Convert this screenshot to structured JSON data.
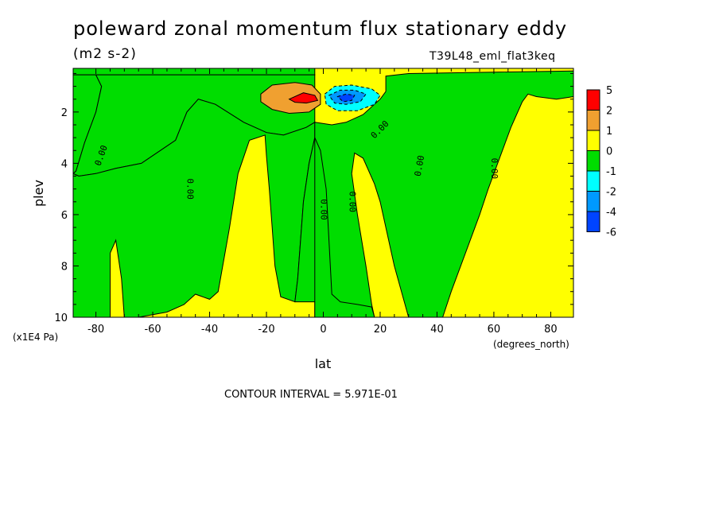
{
  "chart_data": {
    "type": "heatmap",
    "title": "poleward zonal momentum flux stationary eddy",
    "units": "(m2 s-2)",
    "run_id": "T39L48_eml_flat3keq",
    "xlabel": "lat",
    "x_units": "(degrees_north)",
    "ylabel": "plev",
    "y_units": "(x1E4 Pa)",
    "xlim": [
      -88,
      88
    ],
    "ylim": [
      0.3,
      10
    ],
    "y_inverted": true,
    "x_ticks": [
      -80,
      -60,
      -40,
      -20,
      0,
      20,
      40,
      60,
      80
    ],
    "x_tick_labels": [
      "-80",
      "-60",
      "-40",
      "-20",
      "0",
      "20",
      "40",
      "60",
      "80"
    ],
    "y_ticks": [
      2,
      4,
      6,
      8,
      10
    ],
    "y_tick_labels": [
      "2",
      "4",
      "6",
      "8",
      "10"
    ],
    "contour_interval_text": "CONTOUR INTERVAL = 5.971E-01",
    "legend": {
      "placement": "right",
      "labels": [
        "5",
        "2",
        "1",
        "0",
        "-1",
        "-2",
        "-4",
        "-6"
      ],
      "colors": [
        "#ff0000",
        "#f0a030",
        "#ffff00",
        "#00dd00",
        "#00ffff",
        "#0099ff",
        "#0044ff"
      ]
    },
    "regions": [
      {
        "level": 0,
        "color": "#ffff00",
        "points": [
          [
            -88,
            0.3
          ],
          [
            88,
            0.3
          ],
          [
            88,
            10
          ],
          [
            -88,
            10
          ]
        ]
      },
      {
        "level": -1,
        "color": "#00dd00",
        "points": [
          [
            -88,
            0.3
          ],
          [
            -3,
            0.3
          ],
          [
            -3,
            0.55
          ],
          [
            -88,
            0.55
          ]
        ]
      },
      {
        "level": -1,
        "color": "#00dd00",
        "points": [
          [
            -88,
            0.55
          ],
          [
            -80,
            0.55
          ],
          [
            -78,
            1.0
          ],
          [
            -80,
            2.0
          ],
          [
            -84,
            3.2
          ],
          [
            -87,
            4.3
          ],
          [
            -88,
            4.4
          ]
        ]
      },
      {
        "level": -1,
        "color": "#00dd00",
        "points": [
          [
            -88,
            4.4
          ],
          [
            -86,
            4.5
          ],
          [
            -80,
            4.4
          ],
          [
            -73,
            4.2
          ],
          [
            -64,
            4.0
          ],
          [
            -52,
            3.1
          ],
          [
            -48,
            2.0
          ],
          [
            -44,
            1.5
          ],
          [
            -38,
            1.7
          ],
          [
            -28,
            2.4
          ],
          [
            -20,
            2.8
          ],
          [
            -14,
            2.9
          ],
          [
            -6,
            2.6
          ],
          [
            -3,
            2.4
          ],
          [
            -3,
            0.55
          ],
          [
            -80,
            0.55
          ],
          [
            -78,
            1.0
          ],
          [
            -80,
            2.0
          ],
          [
            -84,
            3.2
          ],
          [
            -87,
            4.3
          ]
        ]
      },
      {
        "level": -1,
        "color": "#00dd00",
        "points": [
          [
            -88,
            4.4
          ],
          [
            -86,
            4.5
          ],
          [
            -80,
            4.4
          ],
          [
            -73,
            4.2
          ],
          [
            -64,
            4.0
          ],
          [
            -52,
            3.1
          ],
          [
            -48,
            2.0
          ],
          [
            -44,
            1.5
          ],
          [
            -38,
            1.7
          ],
          [
            -28,
            2.4
          ],
          [
            -20,
            2.8
          ],
          [
            -14,
            2.9
          ],
          [
            -6,
            2.6
          ],
          [
            -3,
            2.4
          ],
          [
            -3,
            3.0
          ],
          [
            -5,
            4.0
          ],
          [
            -7,
            5.5
          ],
          [
            -8,
            7.0
          ],
          [
            -9,
            8.5
          ],
          [
            -10,
            9.4
          ],
          [
            -15,
            9.2
          ],
          [
            -17,
            8.0
          ],
          [
            -18,
            6.5
          ],
          [
            -19,
            5.0
          ],
          [
            -20,
            3.7
          ],
          [
            -20.5,
            2.9
          ],
          [
            -26,
            3.1
          ],
          [
            -30,
            4.4
          ],
          [
            -33,
            6.5
          ],
          [
            -37,
            9.0
          ],
          [
            -40,
            9.3
          ],
          [
            -45,
            9.1
          ],
          [
            -49,
            9.5
          ],
          [
            -55,
            9.8
          ],
          [
            -65,
            10
          ],
          [
            -70,
            10
          ],
          [
            -71,
            8.5
          ],
          [
            -73,
            7.0
          ],
          [
            -75,
            7.5
          ],
          [
            -75,
            10
          ],
          [
            -88,
            10
          ]
        ]
      },
      {
        "level": -1,
        "color": "#00dd00",
        "points": [
          [
            -3,
            2.4
          ],
          [
            3,
            2.5
          ],
          [
            8,
            2.4
          ],
          [
            14,
            2.1
          ],
          [
            17,
            1.8
          ],
          [
            20,
            1.5
          ],
          [
            22,
            1.2
          ],
          [
            22,
            0.6
          ],
          [
            30,
            0.5
          ],
          [
            88,
            0.4
          ],
          [
            88,
            1.4
          ],
          [
            82,
            1.5
          ],
          [
            75,
            1.4
          ],
          [
            72,
            1.3
          ],
          [
            70,
            1.6
          ],
          [
            66,
            2.6
          ],
          [
            62,
            3.8
          ],
          [
            58,
            5.0
          ],
          [
            55,
            6.0
          ],
          [
            50,
            7.5
          ],
          [
            45,
            9.0
          ],
          [
            42,
            10
          ],
          [
            30,
            10
          ],
          [
            25,
            8.0
          ],
          [
            20,
            5.5
          ],
          [
            18,
            4.8
          ],
          [
            14,
            3.8
          ],
          [
            11,
            3.6
          ],
          [
            10,
            4.4
          ],
          [
            12,
            6.0
          ],
          [
            15,
            8.0
          ],
          [
            17,
            9.5
          ],
          [
            18,
            10
          ],
          [
            -3,
            10
          ],
          [
            -3,
            9.4
          ],
          [
            -10,
            9.4
          ],
          [
            -9,
            8.5
          ],
          [
            -8,
            7.0
          ],
          [
            -7,
            5.5
          ],
          [
            -5,
            4.0
          ],
          [
            -3,
            3.0
          ]
        ]
      },
      {
        "level": -1,
        "color": "#00dd00",
        "points": [
          [
            -3,
            10
          ],
          [
            18,
            10
          ],
          [
            17,
            9.6
          ],
          [
            12,
            9.5
          ],
          [
            6,
            9.4
          ],
          [
            3,
            9.1
          ],
          [
            2,
            7.0
          ],
          [
            1,
            5.0
          ],
          [
            -1,
            3.5
          ],
          [
            -3,
            3.0
          ]
        ]
      },
      {
        "level": 1,
        "color": "#f0a030",
        "points": [
          [
            -22,
            1.3
          ],
          [
            -18,
            0.95
          ],
          [
            -10,
            0.85
          ],
          [
            -4,
            0.95
          ],
          [
            -1,
            1.3
          ],
          [
            -1,
            1.7
          ],
          [
            -5,
            2.0
          ],
          [
            -12,
            2.05
          ],
          [
            -18,
            1.9
          ],
          [
            -22,
            1.6
          ]
        ]
      },
      {
        "level": 2,
        "color": "#ff0000",
        "points": [
          [
            -12,
            1.5
          ],
          [
            -7,
            1.25
          ],
          [
            -3,
            1.35
          ],
          [
            -2,
            1.55
          ],
          [
            -6,
            1.65
          ],
          [
            -10,
            1.62
          ]
        ]
      },
      {
        "level": -2,
        "color": "#00ffff",
        "points": [
          [
            0.5,
            1.3
          ],
          [
            4,
            1.0
          ],
          [
            10,
            0.95
          ],
          [
            17,
            1.1
          ],
          [
            20,
            1.35
          ],
          [
            18,
            1.7
          ],
          [
            12,
            1.95
          ],
          [
            5,
            1.95
          ],
          [
            1,
            1.7
          ]
        ]
      },
      {
        "level": -4,
        "color": "#0099ff",
        "points": [
          [
            2,
            1.35
          ],
          [
            6,
            1.15
          ],
          [
            11,
            1.15
          ],
          [
            15,
            1.3
          ],
          [
            13,
            1.6
          ],
          [
            8,
            1.7
          ],
          [
            4,
            1.65
          ]
        ]
      },
      {
        "level": -6,
        "color": "#0044ff",
        "points": [
          [
            5,
            1.4
          ],
          [
            8,
            1.3
          ],
          [
            11,
            1.35
          ],
          [
            10,
            1.55
          ],
          [
            7,
            1.6
          ]
        ]
      }
    ],
    "contour_labels": [
      {
        "text": "0.00",
        "x": -78,
        "y": 3.7,
        "angle": -70
      },
      {
        "text": "0.00",
        "x": -47,
        "y": 5.0,
        "angle": 90
      },
      {
        "text": "0.00",
        "x": 0,
        "y": 5.8,
        "angle": 90
      },
      {
        "text": "0.00",
        "x": 10,
        "y": 5.5,
        "angle": 90
      },
      {
        "text": "0.00",
        "x": 20,
        "y": 2.7,
        "angle": -45
      },
      {
        "text": "0.00",
        "x": 34,
        "y": 4.1,
        "angle": -80
      },
      {
        "text": "0.00",
        "x": 60,
        "y": 4.2,
        "angle": 90
      }
    ]
  }
}
